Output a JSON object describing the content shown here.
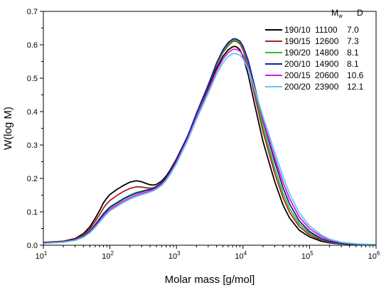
{
  "chart_data": {
    "type": "line",
    "title": "",
    "xlabel": "Molar mass [g/mol]",
    "ylabel": "W(log M)",
    "x_scale": "log",
    "xlim": [
      10,
      1000000
    ],
    "ylim": [
      0,
      0.7
    ],
    "x_ticks": [
      {
        "base": "10",
        "exp": "1"
      },
      {
        "base": "10",
        "exp": "2"
      },
      {
        "base": "10",
        "exp": "3"
      },
      {
        "base": "10",
        "exp": "4"
      },
      {
        "base": "10",
        "exp": "5"
      },
      {
        "base": "10",
        "exp": "6"
      }
    ],
    "y_ticks": [
      "0.0",
      "0.1",
      "0.2",
      "0.3",
      "0.4",
      "0.5",
      "0.6",
      "0.7"
    ],
    "grid": false,
    "legend": {
      "position": "top-right",
      "col_mw": {
        "base": "M",
        "sub": "w"
      },
      "col_d": "D"
    },
    "series": [
      {
        "name": "190/10",
        "mw": "11100",
        "d": "7.0",
        "color": "#000000",
        "points": [
          [
            10,
            0.008
          ],
          [
            20,
            0.012
          ],
          [
            30,
            0.02
          ],
          [
            40,
            0.035
          ],
          [
            50,
            0.055
          ],
          [
            60,
            0.08
          ],
          [
            70,
            0.104
          ],
          [
            80,
            0.127
          ],
          [
            90,
            0.141
          ],
          [
            100,
            0.152
          ],
          [
            130,
            0.168
          ],
          [
            160,
            0.179
          ],
          [
            200,
            0.189
          ],
          [
            250,
            0.193
          ],
          [
            300,
            0.19
          ],
          [
            350,
            0.185
          ],
          [
            400,
            0.181
          ],
          [
            450,
            0.18
          ],
          [
            500,
            0.182
          ],
          [
            600,
            0.192
          ],
          [
            700,
            0.207
          ],
          [
            800,
            0.224
          ],
          [
            1000,
            0.258
          ],
          [
            1500,
            0.33
          ],
          [
            2000,
            0.39
          ],
          [
            3000,
            0.47
          ],
          [
            4000,
            0.53
          ],
          [
            5000,
            0.565
          ],
          [
            6000,
            0.585
          ],
          [
            7000,
            0.594
          ],
          [
            7500,
            0.595
          ],
          [
            8000,
            0.594
          ],
          [
            9000,
            0.585
          ],
          [
            10000,
            0.565
          ],
          [
            12000,
            0.51
          ],
          [
            15000,
            0.42
          ],
          [
            20000,
            0.31
          ],
          [
            30000,
            0.19
          ],
          [
            40000,
            0.12
          ],
          [
            50000,
            0.082
          ],
          [
            70000,
            0.045
          ],
          [
            100000,
            0.025
          ],
          [
            150000,
            0.012
          ],
          [
            200000,
            0.007
          ],
          [
            300000,
            0.004
          ],
          [
            500000,
            0.002
          ],
          [
            1000000,
            0.001
          ]
        ]
      },
      {
        "name": "190/15",
        "mw": "12600",
        "d": "7.3",
        "color": "#b02020",
        "points": [
          [
            10,
            0.007
          ],
          [
            20,
            0.011
          ],
          [
            30,
            0.018
          ],
          [
            40,
            0.031
          ],
          [
            50,
            0.049
          ],
          [
            60,
            0.071
          ],
          [
            70,
            0.092
          ],
          [
            80,
            0.111
          ],
          [
            90,
            0.124
          ],
          [
            100,
            0.134
          ],
          [
            130,
            0.15
          ],
          [
            160,
            0.161
          ],
          [
            200,
            0.17
          ],
          [
            250,
            0.175
          ],
          [
            300,
            0.174
          ],
          [
            350,
            0.172
          ],
          [
            400,
            0.171
          ],
          [
            450,
            0.172
          ],
          [
            500,
            0.176
          ],
          [
            600,
            0.187
          ],
          [
            700,
            0.203
          ],
          [
            800,
            0.22
          ],
          [
            1000,
            0.255
          ],
          [
            1500,
            0.33
          ],
          [
            2000,
            0.393
          ],
          [
            3000,
            0.477
          ],
          [
            4000,
            0.54
          ],
          [
            5000,
            0.577
          ],
          [
            6000,
            0.598
          ],
          [
            7000,
            0.61
          ],
          [
            7500,
            0.611
          ],
          [
            8000,
            0.61
          ],
          [
            9000,
            0.603
          ],
          [
            10000,
            0.585
          ],
          [
            12000,
            0.535
          ],
          [
            15000,
            0.448
          ],
          [
            20000,
            0.34
          ],
          [
            30000,
            0.215
          ],
          [
            40000,
            0.142
          ],
          [
            50000,
            0.099
          ],
          [
            70000,
            0.056
          ],
          [
            100000,
            0.031
          ],
          [
            150000,
            0.015
          ],
          [
            200000,
            0.009
          ],
          [
            300000,
            0.005
          ],
          [
            500000,
            0.002
          ],
          [
            1000000,
            0.001
          ]
        ]
      },
      {
        "name": "190/20",
        "mw": "14800",
        "d": "8.1",
        "color": "#22c422",
        "points": [
          [
            10,
            0.006
          ],
          [
            20,
            0.01
          ],
          [
            30,
            0.016
          ],
          [
            40,
            0.028
          ],
          [
            50,
            0.043
          ],
          [
            60,
            0.062
          ],
          [
            70,
            0.08
          ],
          [
            80,
            0.095
          ],
          [
            90,
            0.106
          ],
          [
            100,
            0.115
          ],
          [
            130,
            0.129
          ],
          [
            160,
            0.14
          ],
          [
            200,
            0.15
          ],
          [
            250,
            0.158
          ],
          [
            300,
            0.162
          ],
          [
            350,
            0.165
          ],
          [
            400,
            0.168
          ],
          [
            450,
            0.171
          ],
          [
            500,
            0.175
          ],
          [
            600,
            0.186
          ],
          [
            700,
            0.201
          ],
          [
            800,
            0.218
          ],
          [
            1000,
            0.253
          ],
          [
            1500,
            0.328
          ],
          [
            2000,
            0.392
          ],
          [
            3000,
            0.478
          ],
          [
            4000,
            0.542
          ],
          [
            5000,
            0.58
          ],
          [
            6000,
            0.602
          ],
          [
            7000,
            0.613
          ],
          [
            7500,
            0.614
          ],
          [
            8000,
            0.613
          ],
          [
            9000,
            0.607
          ],
          [
            10000,
            0.591
          ],
          [
            12000,
            0.545
          ],
          [
            15000,
            0.462
          ],
          [
            20000,
            0.355
          ],
          [
            30000,
            0.23
          ],
          [
            40000,
            0.155
          ],
          [
            50000,
            0.11
          ],
          [
            70000,
            0.064
          ],
          [
            100000,
            0.036
          ],
          [
            150000,
            0.018
          ],
          [
            200000,
            0.01
          ],
          [
            300000,
            0.005
          ],
          [
            500000,
            0.003
          ],
          [
            1000000,
            0.001
          ]
        ]
      },
      {
        "name": "200/10",
        "mw": "14900",
        "d": "8.1",
        "color": "#1a1a9c",
        "points": [
          [
            10,
            0.006
          ],
          [
            20,
            0.01
          ],
          [
            30,
            0.016
          ],
          [
            40,
            0.027
          ],
          [
            50,
            0.042
          ],
          [
            60,
            0.06
          ],
          [
            70,
            0.078
          ],
          [
            80,
            0.093
          ],
          [
            90,
            0.104
          ],
          [
            100,
            0.113
          ],
          [
            130,
            0.127
          ],
          [
            160,
            0.138
          ],
          [
            200,
            0.148
          ],
          [
            250,
            0.156
          ],
          [
            300,
            0.16
          ],
          [
            350,
            0.164
          ],
          [
            400,
            0.167
          ],
          [
            450,
            0.17
          ],
          [
            500,
            0.175
          ],
          [
            600,
            0.186
          ],
          [
            700,
            0.201
          ],
          [
            800,
            0.219
          ],
          [
            1000,
            0.254
          ],
          [
            1500,
            0.33
          ],
          [
            2000,
            0.395
          ],
          [
            3000,
            0.48
          ],
          [
            4000,
            0.545
          ],
          [
            5000,
            0.585
          ],
          [
            6000,
            0.607
          ],
          [
            7000,
            0.617
          ],
          [
            7500,
            0.618
          ],
          [
            8000,
            0.617
          ],
          [
            9000,
            0.611
          ],
          [
            10000,
            0.596
          ],
          [
            12000,
            0.553
          ],
          [
            15000,
            0.475
          ],
          [
            20000,
            0.372
          ],
          [
            30000,
            0.25
          ],
          [
            40000,
            0.172
          ],
          [
            50000,
            0.124
          ],
          [
            70000,
            0.073
          ],
          [
            100000,
            0.041
          ],
          [
            150000,
            0.02
          ],
          [
            200000,
            0.011
          ],
          [
            300000,
            0.006
          ],
          [
            500000,
            0.003
          ],
          [
            1000000,
            0.001
          ]
        ]
      },
      {
        "name": "200/15",
        "mw": "20600",
        "d": "10.6",
        "color": "#d41fd4",
        "points": [
          [
            10,
            0.006
          ],
          [
            20,
            0.009
          ],
          [
            30,
            0.015
          ],
          [
            40,
            0.025
          ],
          [
            50,
            0.039
          ],
          [
            60,
            0.056
          ],
          [
            70,
            0.073
          ],
          [
            80,
            0.087
          ],
          [
            90,
            0.098
          ],
          [
            100,
            0.107
          ],
          [
            130,
            0.121
          ],
          [
            160,
            0.132
          ],
          [
            200,
            0.142
          ],
          [
            250,
            0.15
          ],
          [
            300,
            0.155
          ],
          [
            350,
            0.159
          ],
          [
            400,
            0.163
          ],
          [
            450,
            0.166
          ],
          [
            500,
            0.171
          ],
          [
            600,
            0.182
          ],
          [
            700,
            0.197
          ],
          [
            800,
            0.214
          ],
          [
            1000,
            0.248
          ],
          [
            1500,
            0.322
          ],
          [
            2000,
            0.383
          ],
          [
            3000,
            0.463
          ],
          [
            4000,
            0.522
          ],
          [
            5000,
            0.557
          ],
          [
            6000,
            0.577
          ],
          [
            7000,
            0.586
          ],
          [
            7500,
            0.587
          ],
          [
            8000,
            0.586
          ],
          [
            9000,
            0.581
          ],
          [
            10000,
            0.568
          ],
          [
            12000,
            0.533
          ],
          [
            15000,
            0.465
          ],
          [
            20000,
            0.375
          ],
          [
            30000,
            0.262
          ],
          [
            40000,
            0.188
          ],
          [
            50000,
            0.14
          ],
          [
            70000,
            0.085
          ],
          [
            100000,
            0.05
          ],
          [
            150000,
            0.026
          ],
          [
            200000,
            0.015
          ],
          [
            300000,
            0.008
          ],
          [
            500000,
            0.004
          ],
          [
            1000000,
            0.001
          ]
        ]
      },
      {
        "name": "200/20",
        "mw": "23900",
        "d": "12.1",
        "color": "#5fc8ee",
        "points": [
          [
            10,
            0.005
          ],
          [
            20,
            0.009
          ],
          [
            30,
            0.014
          ],
          [
            40,
            0.024
          ],
          [
            50,
            0.037
          ],
          [
            60,
            0.053
          ],
          [
            70,
            0.069
          ],
          [
            80,
            0.083
          ],
          [
            90,
            0.094
          ],
          [
            100,
            0.103
          ],
          [
            130,
            0.117
          ],
          [
            160,
            0.128
          ],
          [
            200,
            0.138
          ],
          [
            250,
            0.146
          ],
          [
            300,
            0.151
          ],
          [
            350,
            0.155
          ],
          [
            400,
            0.159
          ],
          [
            450,
            0.163
          ],
          [
            500,
            0.168
          ],
          [
            600,
            0.179
          ],
          [
            700,
            0.194
          ],
          [
            800,
            0.211
          ],
          [
            1000,
            0.244
          ],
          [
            1500,
            0.317
          ],
          [
            2000,
            0.377
          ],
          [
            3000,
            0.455
          ],
          [
            4000,
            0.512
          ],
          [
            5000,
            0.546
          ],
          [
            6000,
            0.565
          ],
          [
            7000,
            0.573
          ],
          [
            7500,
            0.574
          ],
          [
            8000,
            0.573
          ],
          [
            9000,
            0.569
          ],
          [
            10000,
            0.558
          ],
          [
            12000,
            0.527
          ],
          [
            15000,
            0.467
          ],
          [
            20000,
            0.385
          ],
          [
            30000,
            0.278
          ],
          [
            40000,
            0.205
          ],
          [
            50000,
            0.155
          ],
          [
            70000,
            0.097
          ],
          [
            100000,
            0.058
          ],
          [
            150000,
            0.031
          ],
          [
            200000,
            0.018
          ],
          [
            300000,
            0.009
          ],
          [
            500000,
            0.004
          ],
          [
            1000000,
            0.002
          ]
        ]
      }
    ]
  }
}
